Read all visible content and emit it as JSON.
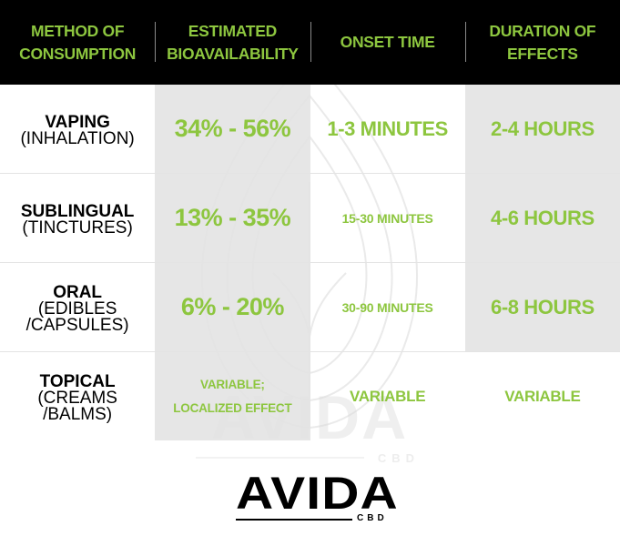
{
  "header": {
    "columns": [
      "Method of\nconsumption",
      "Estimated\nbioavailability",
      "Onset time",
      "Duration of\neffects"
    ]
  },
  "rows": [
    {
      "method_name": "Vaping",
      "method_detail": "(Inhalation)",
      "bioavailability": "34% - 56%",
      "onset": "1-3 minutes",
      "duration": "2-4 hours"
    },
    {
      "method_name": "Sublingual",
      "method_detail": "(Tinctures)",
      "bioavailability": "13% - 35%",
      "onset": "15-30 minutes",
      "duration": "4-6 hours"
    },
    {
      "method_name": "Oral",
      "method_detail": "(Edibles\n/Capsules)",
      "bioavailability": "6% - 20%",
      "onset": "30-90 minutes",
      "duration": "6-8 hours"
    },
    {
      "method_name": "Topical",
      "method_detail": "(Creams\n/Balms)",
      "bioavailability": "Variable;\nLocalized effect",
      "onset": "Variable",
      "duration": "Variable"
    }
  ],
  "brand": {
    "logo_text": "AVIDA",
    "logo_sub": "CBD",
    "watermark_text": "AVIDA",
    "watermark_sub": "CBD"
  },
  "colors": {
    "accent": "#8dc63f",
    "header_bg": "#000000",
    "shade": "#e2e2e2"
  },
  "icons": {
    "watermark": "avida-leaf-watermark-icon"
  }
}
